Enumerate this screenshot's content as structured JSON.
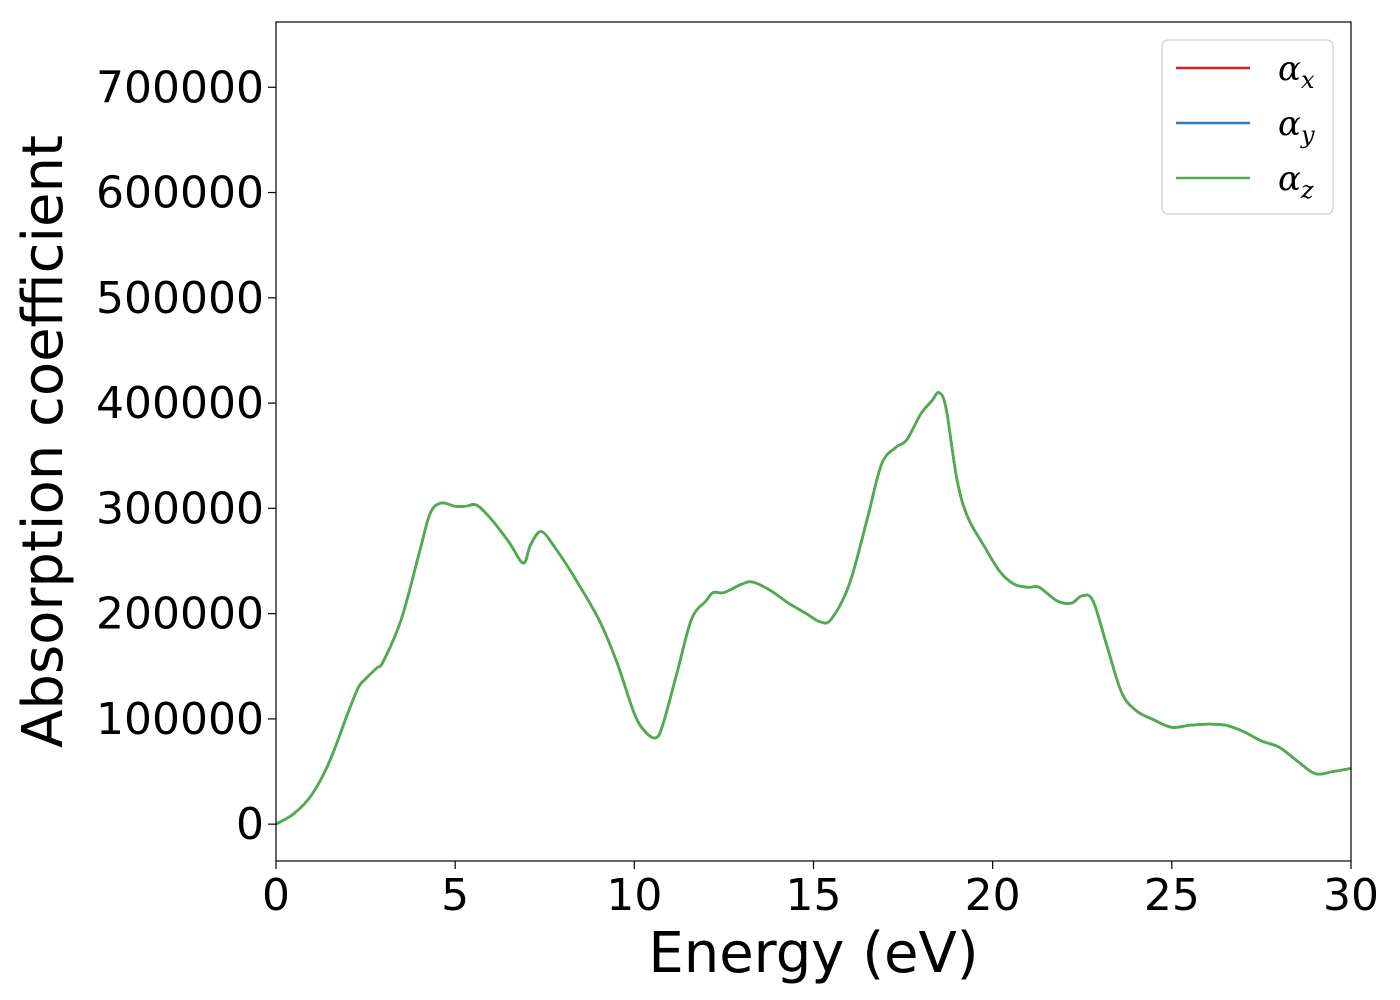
{
  "chart_data": {
    "type": "line",
    "xlabel": "Energy (eV)",
    "ylabel": "Absorption coefficient",
    "xlim": [
      0,
      30
    ],
    "ylim": [
      -35000,
      762000
    ],
    "xticks": [
      0,
      5,
      10,
      15,
      20,
      25,
      30
    ],
    "xtick_labels": [
      "0",
      "5",
      "10",
      "15",
      "20",
      "25",
      "30"
    ],
    "yticks": [
      0,
      100000,
      200000,
      300000,
      400000,
      500000,
      600000,
      700000
    ],
    "ytick_labels": [
      "0",
      "100000",
      "200000",
      "300000",
      "400000",
      "500000",
      "600000",
      "700000"
    ],
    "grid": false,
    "legend_position": "top-right",
    "x": [
      0,
      0.5,
      1.0,
      1.5,
      2.0,
      2.3,
      2.5,
      2.8,
      3.0,
      3.5,
      4.0,
      4.3,
      4.6,
      5.0,
      5.3,
      5.6,
      6.0,
      6.5,
      6.9,
      7.1,
      7.4,
      7.8,
      8.3,
      9.0,
      9.5,
      10.0,
      10.3,
      10.6,
      10.8,
      11.2,
      11.6,
      12.0,
      12.2,
      12.5,
      13.0,
      13.3,
      13.8,
      14.3,
      14.8,
      15.2,
      15.5,
      16.0,
      16.5,
      16.9,
      17.3,
      17.6,
      18.0,
      18.3,
      18.5,
      18.7,
      19.0,
      19.3,
      19.8,
      20.2,
      20.6,
      21.0,
      21.3,
      21.8,
      22.2,
      22.5,
      22.8,
      23.2,
      23.6,
      24.0,
      24.5,
      25.0,
      25.5,
      26.0,
      26.5,
      27.0,
      27.5,
      28.0,
      28.5,
      29.0,
      29.5,
      30.0
    ],
    "series": [
      {
        "name": "αx",
        "label_base": "α",
        "label_sub": "x",
        "color": "#e41a1c",
        "values": [
          0,
          10000,
          28000,
          60000,
          105000,
          130000,
          138000,
          148000,
          155000,
          195000,
          258000,
          295000,
          305000,
          302000,
          302000,
          303000,
          290000,
          268000,
          248000,
          265000,
          278000,
          262000,
          236000,
          195000,
          155000,
          105000,
          88000,
          82000,
          95000,
          145000,
          195000,
          212000,
          220000,
          220000,
          228000,
          230000,
          222000,
          210000,
          200000,
          192000,
          195000,
          228000,
          290000,
          342000,
          358000,
          365000,
          390000,
          402000,
          410000,
          395000,
          328000,
          292000,
          262000,
          240000,
          228000,
          225000,
          225000,
          212000,
          210000,
          217000,
          212000,
          168000,
          125000,
          108000,
          99000,
          92000,
          94000,
          95000,
          94000,
          88000,
          79000,
          73000,
          60000,
          48000,
          50000,
          53000
        ]
      },
      {
        "name": "αy",
        "label_base": "α",
        "label_sub": "y",
        "color": "#377eb8",
        "values": [
          0,
          10000,
          28000,
          60000,
          105000,
          130000,
          138000,
          148000,
          155000,
          195000,
          258000,
          295000,
          305000,
          302000,
          302000,
          303000,
          290000,
          268000,
          248000,
          265000,
          278000,
          262000,
          236000,
          195000,
          155000,
          105000,
          88000,
          82000,
          95000,
          145000,
          195000,
          212000,
          220000,
          220000,
          228000,
          230000,
          222000,
          210000,
          200000,
          192000,
          195000,
          228000,
          290000,
          342000,
          358000,
          365000,
          390000,
          402000,
          410000,
          395000,
          328000,
          292000,
          262000,
          240000,
          228000,
          225000,
          225000,
          212000,
          210000,
          217000,
          212000,
          168000,
          125000,
          108000,
          99000,
          92000,
          94000,
          95000,
          94000,
          88000,
          79000,
          73000,
          60000,
          48000,
          50000,
          53000
        ]
      },
      {
        "name": "αz",
        "label_base": "α",
        "label_sub": "z",
        "color": "#4daf4a",
        "values": [
          0,
          10000,
          28000,
          60000,
          105000,
          130000,
          138000,
          148000,
          155000,
          195000,
          258000,
          295000,
          305000,
          302000,
          302000,
          303000,
          290000,
          268000,
          248000,
          265000,
          278000,
          262000,
          236000,
          195000,
          155000,
          105000,
          88000,
          82000,
          95000,
          145000,
          195000,
          212000,
          220000,
          220000,
          228000,
          230000,
          222000,
          210000,
          200000,
          192000,
          195000,
          228000,
          290000,
          342000,
          358000,
          365000,
          390000,
          402000,
          410000,
          395000,
          328000,
          292000,
          262000,
          240000,
          228000,
          225000,
          225000,
          212000,
          210000,
          217000,
          212000,
          168000,
          125000,
          108000,
          99000,
          92000,
          94000,
          95000,
          94000,
          88000,
          79000,
          73000,
          60000,
          48000,
          50000,
          53000
        ]
      }
    ]
  }
}
